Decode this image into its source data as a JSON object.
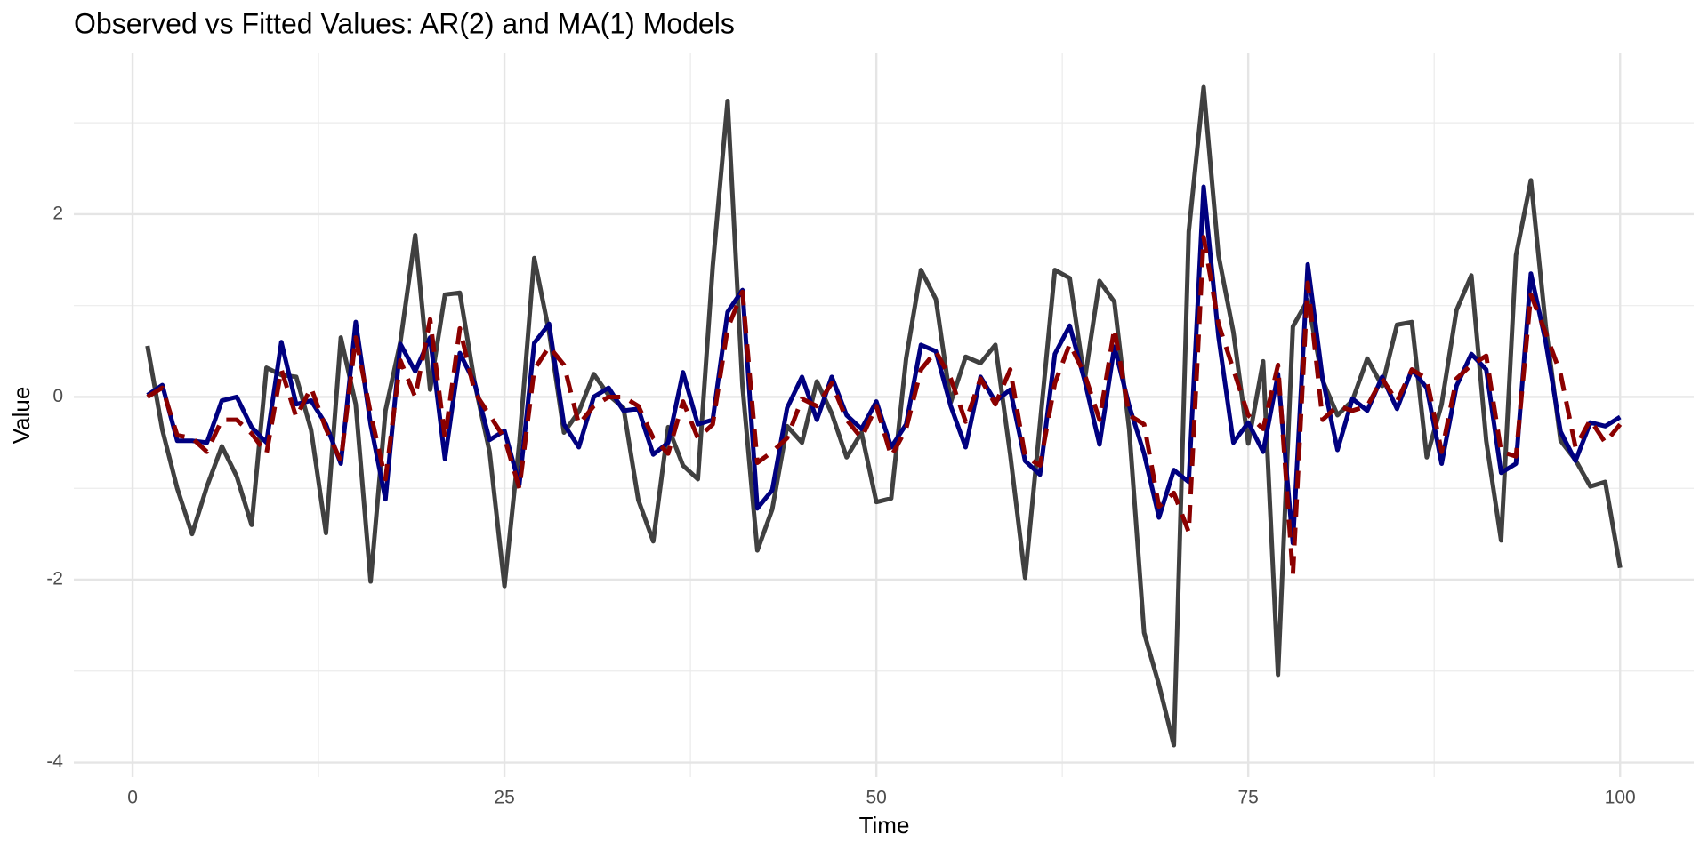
{
  "chart_data": {
    "type": "line",
    "title": "Observed vs Fitted Values: AR(2) and MA(1) Models",
    "x_label": "Time",
    "y_label": "Value",
    "x": [
      1,
      2,
      3,
      4,
      5,
      6,
      7,
      8,
      9,
      10,
      11,
      12,
      13,
      14,
      15,
      16,
      17,
      18,
      19,
      20,
      21,
      22,
      23,
      24,
      25,
      26,
      27,
      28,
      29,
      30,
      31,
      32,
      33,
      34,
      35,
      36,
      37,
      38,
      39,
      40,
      41,
      42,
      43,
      44,
      45,
      46,
      47,
      48,
      49,
      50,
      51,
      52,
      53,
      54,
      55,
      56,
      57,
      58,
      59,
      60,
      61,
      62,
      63,
      64,
      65,
      66,
      67,
      68,
      69,
      70,
      71,
      72,
      73,
      74,
      75,
      76,
      77,
      78,
      79,
      80,
      81,
      82,
      83,
      84,
      85,
      86,
      87,
      88,
      89,
      90,
      91,
      92,
      93,
      94,
      95,
      96,
      97,
      98,
      99,
      100
    ],
    "series": [
      {
        "color": "#404040",
        "dash": false,
        "values": [
          0.56,
          -0.36,
          -1.0,
          -1.5,
          -0.98,
          -0.54,
          -0.87,
          -1.4,
          0.32,
          0.24,
          0.22,
          -0.36,
          -1.49,
          0.65,
          -0.08,
          -2.02,
          -0.15,
          0.6,
          1.77,
          0.08,
          1.12,
          1.14,
          0.15,
          -0.6,
          -2.07,
          -0.5,
          1.52,
          0.71,
          -0.39,
          -0.16,
          0.25,
          0.02,
          -0.12,
          -1.13,
          -1.58,
          -0.33,
          -0.75,
          -0.9,
          1.43,
          3.24,
          0.12,
          -1.68,
          -1.23,
          -0.32,
          -0.5,
          0.17,
          -0.18,
          -0.66,
          -0.39,
          -1.15,
          -1.11,
          0.42,
          1.39,
          1.07,
          -0.06,
          0.44,
          0.37,
          0.57,
          -0.63,
          -1.98,
          -0.3,
          1.39,
          1.3,
          0.18,
          1.27,
          1.04,
          -0.36,
          -2.58,
          -3.15,
          -3.81,
          1.81,
          3.39,
          1.55,
          0.71,
          -0.51,
          0.39,
          -3.04,
          0.77,
          1.06,
          0.18,
          -0.2,
          -0.04,
          0.42,
          0.12,
          0.79,
          0.82,
          -0.66,
          -0.08,
          0.95,
          1.33,
          -0.48,
          -1.57,
          1.55,
          2.37,
          0.77,
          -0.48,
          -0.69,
          -0.98,
          -0.93,
          -1.87
        ]
      },
      {
        "color": "#000080",
        "dash": false,
        "values": [
          0.02,
          0.13,
          -0.48,
          -0.48,
          -0.5,
          -0.04,
          0.0,
          -0.33,
          -0.5,
          0.6,
          -0.08,
          -0.04,
          -0.3,
          -0.73,
          0.82,
          -0.3,
          -1.12,
          0.58,
          0.28,
          0.65,
          -0.68,
          0.48,
          0.15,
          -0.47,
          -0.37,
          -0.96,
          0.59,
          0.8,
          -0.3,
          -0.55,
          0.0,
          0.1,
          -0.15,
          -0.13,
          -0.63,
          -0.5,
          0.27,
          -0.3,
          -0.25,
          0.93,
          1.17,
          -1.22,
          -1.02,
          -0.12,
          0.22,
          -0.25,
          0.22,
          -0.2,
          -0.35,
          -0.05,
          -0.55,
          -0.3,
          0.57,
          0.5,
          -0.1,
          -0.55,
          0.22,
          -0.05,
          0.08,
          -0.7,
          -0.85,
          0.47,
          0.78,
          0.18,
          -0.52,
          0.55,
          -0.1,
          -0.62,
          -1.32,
          -0.8,
          -0.93,
          2.3,
          0.66,
          -0.5,
          -0.28,
          -0.6,
          0.25,
          -1.6,
          1.45,
          0.2,
          -0.58,
          -0.02,
          -0.15,
          0.22,
          -0.13,
          0.3,
          0.1,
          -0.73,
          0.12,
          0.47,
          0.3,
          -0.83,
          -0.73,
          1.35,
          0.6,
          -0.38,
          -0.7,
          -0.28,
          -0.32,
          -0.22
        ]
      },
      {
        "color": "#8b0000",
        "dash": true,
        "values": [
          0.0,
          0.1,
          -0.42,
          -0.45,
          -0.6,
          -0.25,
          -0.25,
          -0.4,
          -0.62,
          0.3,
          -0.22,
          0.1,
          -0.35,
          -0.7,
          0.65,
          -0.18,
          -0.9,
          0.4,
          0.0,
          0.85,
          -0.45,
          0.75,
          0.05,
          -0.2,
          -0.45,
          -1.0,
          0.3,
          0.55,
          0.35,
          -0.3,
          -0.1,
          0.0,
          0.0,
          -0.1,
          -0.45,
          -0.62,
          -0.05,
          -0.45,
          -0.3,
          0.75,
          1.15,
          -0.72,
          -0.6,
          -0.45,
          -0.02,
          -0.1,
          0.15,
          -0.25,
          -0.45,
          -0.1,
          -0.65,
          -0.35,
          0.3,
          0.5,
          0.2,
          -0.27,
          0.2,
          -0.08,
          0.3,
          -0.65,
          -0.75,
          0.15,
          0.58,
          0.25,
          -0.25,
          0.75,
          -0.2,
          -0.3,
          -1.2,
          -1.05,
          -1.48,
          1.75,
          0.8,
          0.3,
          -0.2,
          -0.35,
          0.35,
          -1.95,
          1.25,
          -0.25,
          -0.1,
          -0.15,
          -0.1,
          0.2,
          -0.05,
          0.3,
          0.2,
          -0.6,
          0.2,
          0.35,
          0.45,
          -0.6,
          -0.65,
          1.12,
          0.7,
          0.25,
          -0.55,
          -0.25,
          -0.5,
          -0.3
        ]
      }
    ],
    "xlim": [
      -3.95,
      104.95
    ],
    "ylim": [
      -4.16,
      3.76
    ],
    "xticks": [
      0,
      25,
      50,
      75,
      100
    ],
    "yticks": [
      -4,
      -2,
      0,
      2
    ],
    "x_minor_ticks": [
      12.5,
      37.5,
      62.5,
      87.5
    ],
    "y_minor_ticks": [
      -3,
      -1,
      1,
      3
    ],
    "grid": true
  }
}
